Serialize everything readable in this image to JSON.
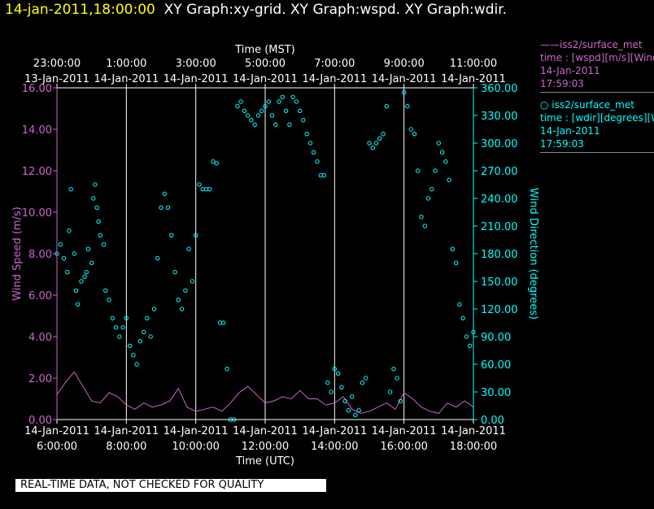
{
  "header": {
    "timestamp": "14-jan-2011,18:00:00",
    "titles": "XY Graph:xy-grid.  XY Graph:wspd.  XY Graph:wdir."
  },
  "legend": {
    "wspd": {
      "name": "——iss2/surface_met",
      "field": "time : [wspd][m/s][Wind",
      "date": "14-Jan-2011",
      "time": "17:59:03"
    },
    "wdir": {
      "name": "○ iss2/surface_met",
      "field": "time : [wdir][degrees][Wi",
      "date": "14-Jan-2011",
      "time": "17:59:03"
    }
  },
  "footer": {
    "quality_notice": "REAL-TIME DATA, NOT CHECKED FOR QUALITY"
  },
  "colors": {
    "wspd": "#cc66cc",
    "wdir": "#00ffff",
    "grid": "#ffffff",
    "background": "#000000"
  },
  "chart_data": {
    "type": "line",
    "top_axis": {
      "label": "Time (MST)",
      "ticks": [
        {
          "time": "23:00:00",
          "date": "13-Jan-2011"
        },
        {
          "time": "1:00:00",
          "date": "14-Jan-2011"
        },
        {
          "time": "3:00:00",
          "date": "14-Jan-2011"
        },
        {
          "time": "5:00:00",
          "date": "14-Jan-2011"
        },
        {
          "time": "7:00:00",
          "date": "14-Jan-2011"
        },
        {
          "time": "9:00:00",
          "date": "14-Jan-2011"
        },
        {
          "time": "11:00:00",
          "date": "14-Jan-2011"
        }
      ]
    },
    "bottom_axis": {
      "label": "Time (UTC)",
      "ticks": [
        {
          "date": "14-Jan-2011",
          "time": "6:00:00"
        },
        {
          "date": "14-Jan-2011",
          "time": "8:00:00"
        },
        {
          "date": "14-Jan-2011",
          "time": "10:00:00"
        },
        {
          "date": "14-Jan-2011",
          "time": "12:00:00"
        },
        {
          "date": "14-Jan-2011",
          "time": "14:00:00"
        },
        {
          "date": "14-Jan-2011",
          "time": "16:00:00"
        },
        {
          "date": "14-Jan-2011",
          "time": "18:00:00"
        }
      ],
      "range_hours_utc": [
        6,
        18
      ]
    },
    "left_axis": {
      "label": "Wind Speed (m/s)",
      "ylim": [
        0,
        16
      ],
      "ticks": [
        "0.00",
        "2.00",
        "4.00",
        "6.00",
        "8.00",
        "10.00",
        "12.00",
        "14.00",
        "16.00"
      ]
    },
    "right_axis": {
      "label": "Wind Direction (degrees)",
      "ylim": [
        0,
        360
      ],
      "ticks": [
        "0.00",
        "30.00",
        "60.00",
        "90.00",
        "120.00",
        "150.00",
        "180.00",
        "210.00",
        "240.00",
        "270.00",
        "300.00",
        "330.00",
        "360.00"
      ]
    },
    "grid": "vertical lines every 2 hours",
    "series": [
      {
        "name": "iss2/surface_met wspd",
        "style": "line",
        "x_hours_utc": [
          6.0,
          6.25,
          6.5,
          6.75,
          7.0,
          7.25,
          7.5,
          7.75,
          8.0,
          8.25,
          8.5,
          8.75,
          9.0,
          9.25,
          9.5,
          9.75,
          10.0,
          10.25,
          10.5,
          10.75,
          11.0,
          11.25,
          11.5,
          11.75,
          12.0,
          12.25,
          12.5,
          12.75,
          13.0,
          13.25,
          13.5,
          13.75,
          14.0,
          14.25,
          14.5,
          14.75,
          15.0,
          15.25,
          15.5,
          15.75,
          16.0,
          16.25,
          16.5,
          16.75,
          17.0,
          17.25,
          17.5,
          17.75,
          18.0
        ],
        "values": [
          1.2,
          1.8,
          2.3,
          1.6,
          0.9,
          0.8,
          1.3,
          1.1,
          0.7,
          0.5,
          0.8,
          0.6,
          0.7,
          0.9,
          1.5,
          0.6,
          0.4,
          0.5,
          0.6,
          0.4,
          0.8,
          1.3,
          1.6,
          1.2,
          0.8,
          0.9,
          1.1,
          1.0,
          1.4,
          1.0,
          1.0,
          0.7,
          0.8,
          1.1,
          0.5,
          0.3,
          0.4,
          0.6,
          0.8,
          0.5,
          1.3,
          1.0,
          0.6,
          0.4,
          0.3,
          0.8,
          0.6,
          0.9,
          0.6
        ]
      },
      {
        "name": "iss2/surface_met wdir",
        "style": "scatter",
        "points_hours_utc_deg": [
          [
            6.0,
            180
          ],
          [
            6.1,
            190
          ],
          [
            6.2,
            175
          ],
          [
            6.3,
            160
          ],
          [
            6.35,
            205
          ],
          [
            6.4,
            250
          ],
          [
            6.5,
            180
          ],
          [
            6.55,
            140
          ],
          [
            6.6,
            125
          ],
          [
            6.7,
            150
          ],
          [
            6.8,
            155
          ],
          [
            6.85,
            160
          ],
          [
            6.9,
            185
          ],
          [
            7.0,
            170
          ],
          [
            7.05,
            240
          ],
          [
            7.1,
            255
          ],
          [
            7.15,
            230
          ],
          [
            7.2,
            215
          ],
          [
            7.25,
            200
          ],
          [
            7.35,
            190
          ],
          [
            7.4,
            140
          ],
          [
            7.5,
            130
          ],
          [
            7.6,
            110
          ],
          [
            7.7,
            100
          ],
          [
            7.8,
            90
          ],
          [
            7.9,
            100
          ],
          [
            8.0,
            110
          ],
          [
            8.1,
            80
          ],
          [
            8.2,
            70
          ],
          [
            8.3,
            60
          ],
          [
            8.4,
            85
          ],
          [
            8.5,
            95
          ],
          [
            8.6,
            110
          ],
          [
            8.7,
            90
          ],
          [
            8.8,
            120
          ],
          [
            8.9,
            175
          ],
          [
            9.0,
            230
          ],
          [
            9.1,
            245
          ],
          [
            9.2,
            230
          ],
          [
            9.3,
            200
          ],
          [
            9.4,
            160
          ],
          [
            9.5,
            130
          ],
          [
            9.6,
            120
          ],
          [
            9.7,
            140
          ],
          [
            9.8,
            185
          ],
          [
            9.9,
            150
          ],
          [
            10.0,
            200
          ],
          [
            10.1,
            255
          ],
          [
            10.2,
            250
          ],
          [
            10.3,
            250
          ],
          [
            10.4,
            250
          ],
          [
            10.5,
            280
          ],
          [
            10.6,
            278
          ],
          [
            10.7,
            105
          ],
          [
            10.8,
            105
          ],
          [
            10.9,
            55
          ],
          [
            11.0,
            0
          ],
          [
            11.1,
            0
          ],
          [
            11.2,
            340
          ],
          [
            11.3,
            345
          ],
          [
            11.4,
            335
          ],
          [
            11.5,
            330
          ],
          [
            11.6,
            325
          ],
          [
            11.7,
            320
          ],
          [
            11.8,
            330
          ],
          [
            11.9,
            335
          ],
          [
            12.0,
            340
          ],
          [
            12.1,
            345
          ],
          [
            12.2,
            330
          ],
          [
            12.3,
            320
          ],
          [
            12.4,
            345
          ],
          [
            12.5,
            350
          ],
          [
            12.6,
            335
          ],
          [
            12.7,
            320
          ],
          [
            12.8,
            350
          ],
          [
            12.9,
            345
          ],
          [
            13.0,
            335
          ],
          [
            13.1,
            325
          ],
          [
            13.2,
            310
          ],
          [
            13.3,
            300
          ],
          [
            13.4,
            290
          ],
          [
            13.5,
            280
          ],
          [
            13.6,
            265
          ],
          [
            13.7,
            265
          ],
          [
            13.8,
            40
          ],
          [
            13.9,
            30
          ],
          [
            14.0,
            55
          ],
          [
            14.1,
            50
          ],
          [
            14.2,
            35
          ],
          [
            14.3,
            20
          ],
          [
            14.4,
            10
          ],
          [
            14.5,
            25
          ],
          [
            14.6,
            5
          ],
          [
            14.7,
            10
          ],
          [
            14.8,
            40
          ],
          [
            14.9,
            45
          ],
          [
            15.0,
            300
          ],
          [
            15.1,
            295
          ],
          [
            15.2,
            300
          ],
          [
            15.3,
            305
          ],
          [
            15.4,
            310
          ],
          [
            15.5,
            340
          ],
          [
            15.6,
            30
          ],
          [
            15.7,
            55
          ],
          [
            15.8,
            45
          ],
          [
            15.9,
            20
          ],
          [
            16.0,
            355
          ],
          [
            16.1,
            340
          ],
          [
            16.2,
            315
          ],
          [
            16.3,
            310
          ],
          [
            16.4,
            270
          ],
          [
            16.5,
            220
          ],
          [
            16.6,
            210
          ],
          [
            16.7,
            240
          ],
          [
            16.8,
            250
          ],
          [
            16.9,
            270
          ],
          [
            17.0,
            300
          ],
          [
            17.1,
            290
          ],
          [
            17.2,
            280
          ],
          [
            17.3,
            260
          ],
          [
            17.4,
            185
          ],
          [
            17.5,
            170
          ],
          [
            17.6,
            125
          ],
          [
            17.7,
            110
          ],
          [
            17.8,
            90
          ],
          [
            17.9,
            80
          ],
          [
            18.0,
            95
          ]
        ]
      }
    ]
  }
}
